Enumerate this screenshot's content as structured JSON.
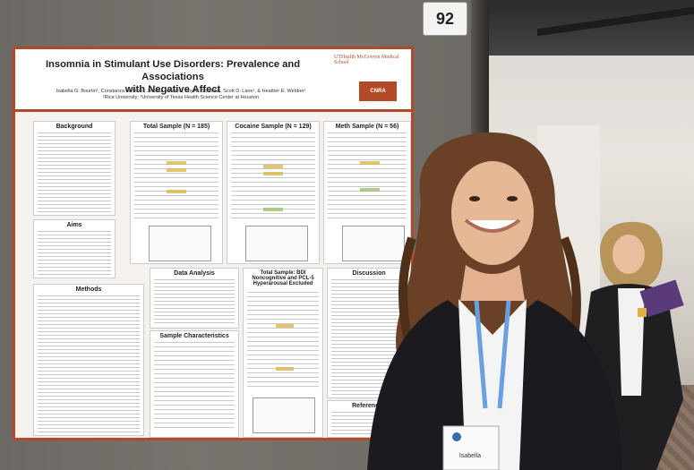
{
  "booth_number": "92",
  "poster": {
    "title_line1": "Insomnia in Stimulant Use Disorders: Prevalence and Associations",
    "title_line2": "with Negative Affect",
    "authors": "Isabella G. Bourtin¹, Constanza de Dios¹, Jessica Vincent¹, Joy M. Schmitz¹, Scott D. Lane¹, & Heather E. Webber¹",
    "affiliation": "¹Rice University; ¹University of Texas Health Science Center at Houston",
    "logo_text": "UTHealth McGovern Medical School",
    "logo2_text": "CNRA",
    "sections": {
      "background": "Background",
      "aims": "Aims",
      "methods": "Methods",
      "total_sample": "Total Sample (N = 185)",
      "cocaine_sample": "Cocaine Sample (N = 129)",
      "meth_sample": "Meth Sample (N = 56)",
      "data_analysis": "Data Analysis",
      "bdi_sample": "Total Sample: BDI Noncognitive and PCL-5 Hyperarousal Excluded",
      "sample_characteristics": "Sample Characteristics",
      "discussion": "Discussion",
      "references": "References"
    }
  },
  "lanyard_badge": {
    "name": "Isabella"
  }
}
